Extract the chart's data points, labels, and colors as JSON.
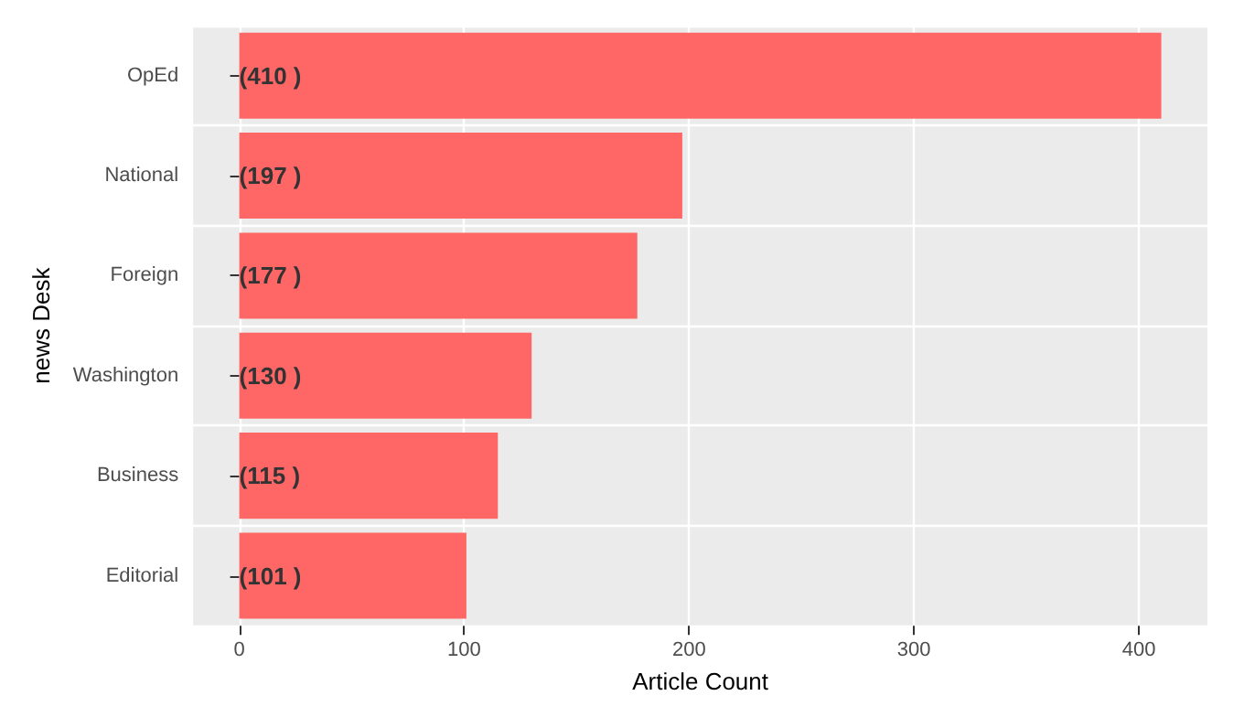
{
  "chart_data": {
    "type": "bar",
    "orientation": "horizontal",
    "xlabel": "Article Count",
    "ylabel": "news Desk",
    "categories": [
      "OpEd",
      "National",
      "Foreign",
      "Washington",
      "Business",
      "Editorial"
    ],
    "values": [
      410,
      197,
      177,
      130,
      115,
      101
    ],
    "color": "#ff6666",
    "value_labels": [
      "(410 )",
      "(197 )",
      "(177 )",
      "(130 )",
      "(115 )",
      "(101 )"
    ],
    "xlim": [
      -20.5,
      430.5
    ],
    "xticks": [
      0,
      100,
      200,
      300,
      400
    ],
    "grid": true
  }
}
